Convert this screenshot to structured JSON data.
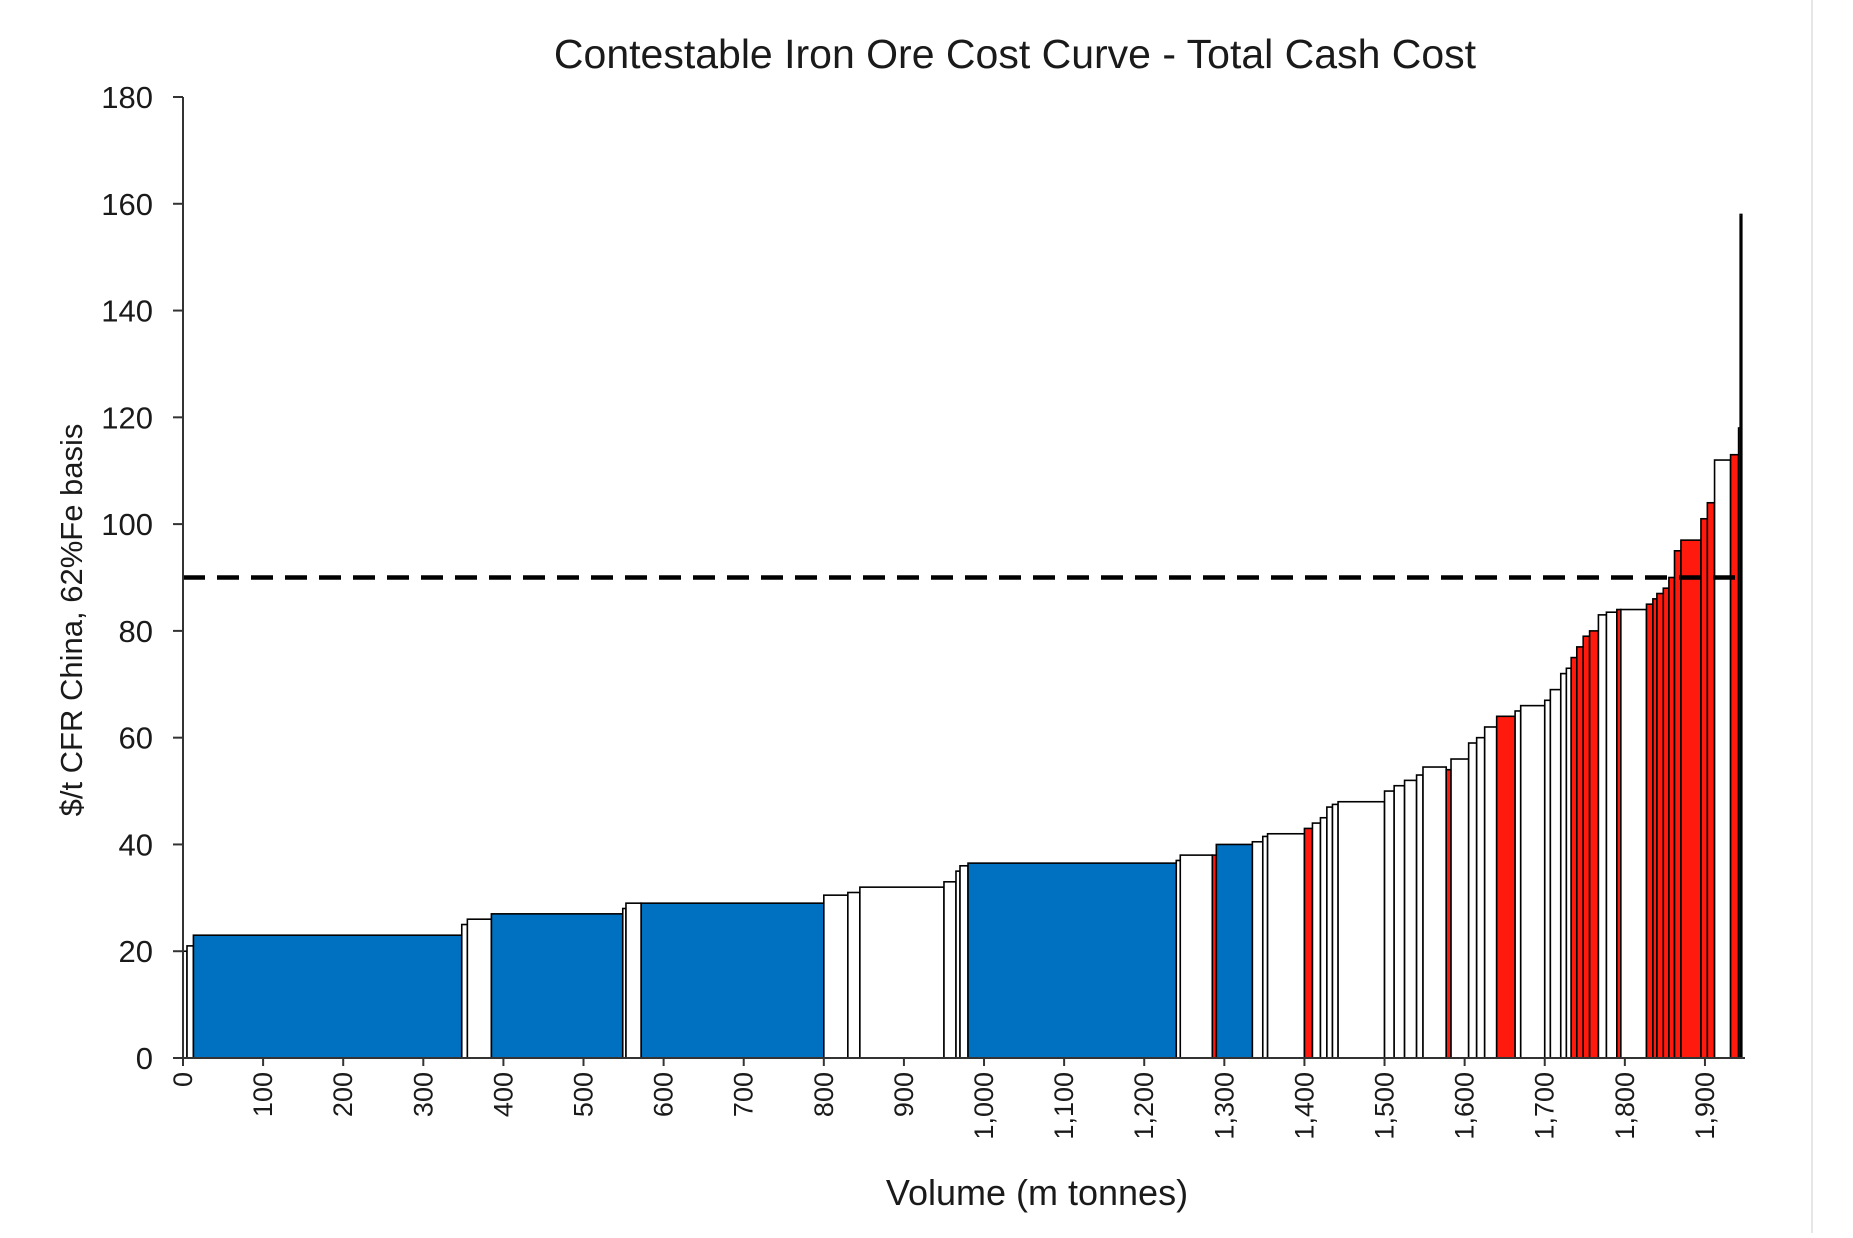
{
  "chart_data": {
    "type": "bar",
    "subtype": "cost-curve",
    "title": "Contestable Iron Ore Cost Curve - Total Cash Cost",
    "xlabel": "Volume (m tonnes)",
    "ylabel": "$/t CFR China, 62%Fe basis",
    "xlim": [
      0,
      1950
    ],
    "ylim": [
      0,
      180
    ],
    "x_ticks": [
      {
        "value": 0,
        "label": "0"
      },
      {
        "value": 100,
        "label": "100"
      },
      {
        "value": 200,
        "label": "200"
      },
      {
        "value": 300,
        "label": "300"
      },
      {
        "value": 400,
        "label": "400"
      },
      {
        "value": 500,
        "label": "500"
      },
      {
        "value": 600,
        "label": "600"
      },
      {
        "value": 700,
        "label": "700"
      },
      {
        "value": 800,
        "label": "800"
      },
      {
        "value": 900,
        "label": "900"
      },
      {
        "value": 1000,
        "label": "1,000"
      },
      {
        "value": 1100,
        "label": "1,100"
      },
      {
        "value": 1200,
        "label": "1,200"
      },
      {
        "value": 1300,
        "label": "1,300"
      },
      {
        "value": 1400,
        "label": "1,400"
      },
      {
        "value": 1500,
        "label": "1,500"
      },
      {
        "value": 1600,
        "label": "1,600"
      },
      {
        "value": 1700,
        "label": "1,700"
      },
      {
        "value": 1800,
        "label": "1,800"
      },
      {
        "value": 1900,
        "label": "1,900"
      }
    ],
    "y_ticks": [
      {
        "value": 0,
        "label": "0"
      },
      {
        "value": 20,
        "label": "20"
      },
      {
        "value": 40,
        "label": "40"
      },
      {
        "value": 60,
        "label": "60"
      },
      {
        "value": 80,
        "label": "80"
      },
      {
        "value": 100,
        "label": "100"
      },
      {
        "value": 120,
        "label": "120"
      },
      {
        "value": 140,
        "label": "140"
      },
      {
        "value": 160,
        "label": "160"
      },
      {
        "value": 180,
        "label": "180"
      }
    ],
    "reference_line": {
      "y": 90,
      "style": "dashed",
      "color": "#000000"
    },
    "grid": false,
    "colors": {
      "blue": "#0070C0",
      "red": "#FF1A0D",
      "white": "#FFFFFF",
      "outline": "#000000"
    },
    "segments": [
      {
        "x0": 0,
        "x1": 5,
        "value": 20,
        "color": "white"
      },
      {
        "x0": 5,
        "x1": 13,
        "value": 21,
        "color": "white"
      },
      {
        "x0": 13,
        "x1": 348,
        "value": 23,
        "color": "blue"
      },
      {
        "x0": 348,
        "x1": 355,
        "value": 25,
        "color": "white"
      },
      {
        "x0": 355,
        "x1": 385,
        "value": 26,
        "color": "white"
      },
      {
        "x0": 385,
        "x1": 549,
        "value": 27,
        "color": "blue"
      },
      {
        "x0": 549,
        "x1": 553,
        "value": 28,
        "color": "white"
      },
      {
        "x0": 553,
        "x1": 572,
        "value": 29,
        "color": "white"
      },
      {
        "x0": 572,
        "x1": 800,
        "value": 29,
        "color": "blue"
      },
      {
        "x0": 800,
        "x1": 830,
        "value": 30.5,
        "color": "white"
      },
      {
        "x0": 830,
        "x1": 845,
        "value": 31,
        "color": "white"
      },
      {
        "x0": 845,
        "x1": 950,
        "value": 32,
        "color": "white"
      },
      {
        "x0": 950,
        "x1": 965,
        "value": 33,
        "color": "white"
      },
      {
        "x0": 965,
        "x1": 970,
        "value": 35,
        "color": "white"
      },
      {
        "x0": 970,
        "x1": 980,
        "value": 36,
        "color": "white"
      },
      {
        "x0": 980,
        "x1": 1240,
        "value": 36.5,
        "color": "blue"
      },
      {
        "x0": 1240,
        "x1": 1245,
        "value": 37,
        "color": "white"
      },
      {
        "x0": 1245,
        "x1": 1285,
        "value": 38,
        "color": "white"
      },
      {
        "x0": 1285,
        "x1": 1290,
        "value": 38,
        "color": "red"
      },
      {
        "x0": 1290,
        "x1": 1335,
        "value": 40,
        "color": "blue"
      },
      {
        "x0": 1335,
        "x1": 1348,
        "value": 40.5,
        "color": "white"
      },
      {
        "x0": 1348,
        "x1": 1354,
        "value": 41.5,
        "color": "white"
      },
      {
        "x0": 1354,
        "x1": 1400,
        "value": 42,
        "color": "white"
      },
      {
        "x0": 1400,
        "x1": 1410,
        "value": 43,
        "color": "red"
      },
      {
        "x0": 1410,
        "x1": 1420,
        "value": 44,
        "color": "white"
      },
      {
        "x0": 1420,
        "x1": 1428,
        "value": 45,
        "color": "white"
      },
      {
        "x0": 1428,
        "x1": 1435,
        "value": 47,
        "color": "white"
      },
      {
        "x0": 1435,
        "x1": 1442,
        "value": 47.5,
        "color": "white"
      },
      {
        "x0": 1442,
        "x1": 1500,
        "value": 48,
        "color": "white"
      },
      {
        "x0": 1500,
        "x1": 1512,
        "value": 50,
        "color": "white"
      },
      {
        "x0": 1512,
        "x1": 1525,
        "value": 51,
        "color": "white"
      },
      {
        "x0": 1525,
        "x1": 1540,
        "value": 52,
        "color": "white"
      },
      {
        "x0": 1540,
        "x1": 1548,
        "value": 53,
        "color": "white"
      },
      {
        "x0": 1548,
        "x1": 1577,
        "value": 54.5,
        "color": "white"
      },
      {
        "x0": 1577,
        "x1": 1583,
        "value": 54,
        "color": "red"
      },
      {
        "x0": 1583,
        "x1": 1605,
        "value": 56,
        "color": "white"
      },
      {
        "x0": 1605,
        "x1": 1615,
        "value": 59,
        "color": "white"
      },
      {
        "x0": 1615,
        "x1": 1625,
        "value": 60,
        "color": "white"
      },
      {
        "x0": 1625,
        "x1": 1640,
        "value": 62,
        "color": "white"
      },
      {
        "x0": 1640,
        "x1": 1663,
        "value": 64,
        "color": "red"
      },
      {
        "x0": 1663,
        "x1": 1670,
        "value": 65,
        "color": "white"
      },
      {
        "x0": 1670,
        "x1": 1700,
        "value": 66,
        "color": "white"
      },
      {
        "x0": 1700,
        "x1": 1707,
        "value": 67,
        "color": "white"
      },
      {
        "x0": 1707,
        "x1": 1720,
        "value": 69,
        "color": "white"
      },
      {
        "x0": 1720,
        "x1": 1727,
        "value": 72,
        "color": "white"
      },
      {
        "x0": 1727,
        "x1": 1733,
        "value": 73,
        "color": "white"
      },
      {
        "x0": 1733,
        "x1": 1740,
        "value": 75,
        "color": "red"
      },
      {
        "x0": 1740,
        "x1": 1748,
        "value": 77,
        "color": "red"
      },
      {
        "x0": 1748,
        "x1": 1756,
        "value": 79,
        "color": "red"
      },
      {
        "x0": 1756,
        "x1": 1767,
        "value": 80,
        "color": "red"
      },
      {
        "x0": 1767,
        "x1": 1777,
        "value": 83,
        "color": "white"
      },
      {
        "x0": 1777,
        "x1": 1790,
        "value": 83.5,
        "color": "white"
      },
      {
        "x0": 1790,
        "x1": 1795,
        "value": 84,
        "color": "red"
      },
      {
        "x0": 1795,
        "x1": 1827,
        "value": 84,
        "color": "white"
      },
      {
        "x0": 1827,
        "x1": 1835,
        "value": 85,
        "color": "red"
      },
      {
        "x0": 1835,
        "x1": 1840,
        "value": 86,
        "color": "red"
      },
      {
        "x0": 1840,
        "x1": 1848,
        "value": 87,
        "color": "red"
      },
      {
        "x0": 1848,
        "x1": 1855,
        "value": 88,
        "color": "red"
      },
      {
        "x0": 1855,
        "x1": 1862,
        "value": 90,
        "color": "red"
      },
      {
        "x0": 1862,
        "x1": 1870,
        "value": 95,
        "color": "red"
      },
      {
        "x0": 1870,
        "x1": 1895,
        "value": 97,
        "color": "red"
      },
      {
        "x0": 1895,
        "x1": 1903,
        "value": 101,
        "color": "red"
      },
      {
        "x0": 1903,
        "x1": 1912,
        "value": 104,
        "color": "red"
      },
      {
        "x0": 1912,
        "x1": 1932,
        "value": 112,
        "color": "white"
      },
      {
        "x0": 1932,
        "x1": 1942,
        "value": 113,
        "color": "red"
      },
      {
        "x0": 1942,
        "x1": 1944,
        "value": 118,
        "color": "white"
      },
      {
        "x0": 1944,
        "x1": 1946,
        "value": 158,
        "color": "white"
      }
    ]
  }
}
